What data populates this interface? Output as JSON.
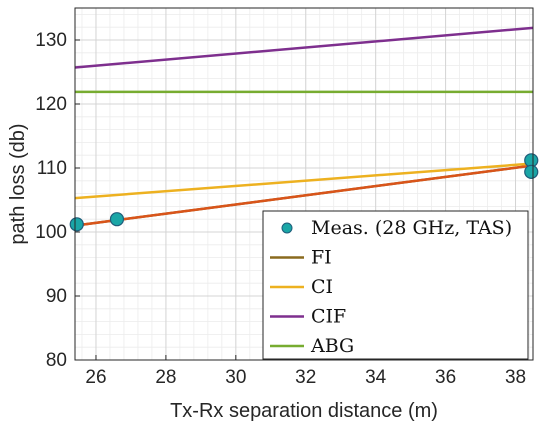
{
  "chart_data": {
    "type": "line",
    "title": "",
    "xlabel": "Tx-Rx separation distance (m)",
    "ylabel": "path loss (db)",
    "xlim": [
      25.4,
      38.5
    ],
    "ylim": [
      80,
      135
    ],
    "xticks": [
      26,
      28,
      30,
      32,
      34,
      36,
      38
    ],
    "yticks": [
      80,
      90,
      100,
      110,
      120,
      130
    ],
    "grid": true,
    "minor_grid": true,
    "legend_placement": "bottom-right",
    "measurements": {
      "name": "Meas. (28 GHz, TAS)",
      "color": "#1aa6a6",
      "points": [
        {
          "x": 25.45,
          "y": 101.2
        },
        {
          "x": 26.6,
          "y": 102.0
        },
        {
          "x": 38.45,
          "y": 111.2
        },
        {
          "x": 38.45,
          "y": 109.4
        }
      ]
    },
    "series": [
      {
        "name": "FI",
        "color": "#8a6a1e",
        "x": [
          25.4,
          38.5
        ],
        "y": [
          101.0,
          110.4
        ]
      },
      {
        "name": "",
        "color": "#d9541a",
        "x": [
          25.4,
          38.5
        ],
        "y": [
          101.0,
          110.4
        ]
      },
      {
        "name": "CI",
        "color": "#edb120",
        "x": [
          25.4,
          38.5
        ],
        "y": [
          105.3,
          110.7
        ]
      },
      {
        "name": "CIF",
        "color": "#7e2f8e",
        "x": [
          25.4,
          38.5
        ],
        "y": [
          125.7,
          131.9
        ]
      },
      {
        "name": "ABG",
        "color": "#77ac30",
        "x": [
          25.4,
          38.5
        ],
        "y": [
          121.9,
          121.9
        ]
      }
    ],
    "legend": [
      {
        "label": "Meas. (28 GHz, TAS)",
        "kind": "marker",
        "color": "#1aa6a6"
      },
      {
        "label": "FI",
        "kind": "line",
        "color": "#8a6a1e"
      },
      {
        "label": "CI",
        "kind": "line",
        "color": "#edb120"
      },
      {
        "label": "CIF",
        "kind": "line",
        "color": "#7e2f8e"
      },
      {
        "label": "ABG",
        "kind": "line",
        "color": "#77ac30"
      }
    ]
  }
}
